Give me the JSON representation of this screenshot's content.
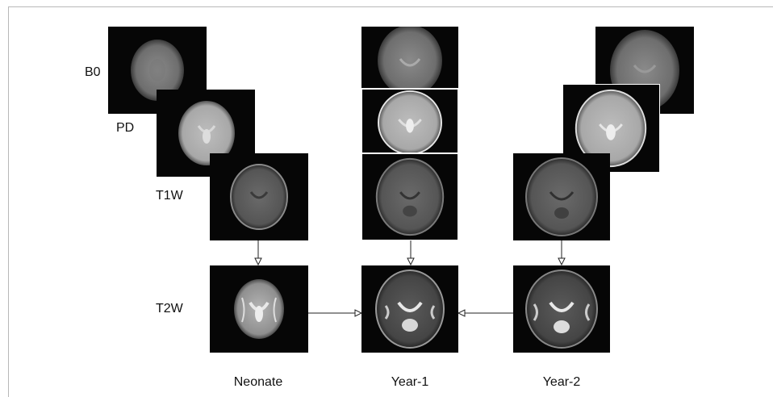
{
  "rows": {
    "b0": "B0",
    "pd": "PD",
    "t1w": "T1W",
    "t2w": "T2W"
  },
  "columns": {
    "neonate": "Neonate",
    "year1": "Year-1",
    "year2": "Year-2"
  },
  "colors": {
    "background": "#ffffff",
    "tile_background": "#060606",
    "arrow": "#222222"
  }
}
